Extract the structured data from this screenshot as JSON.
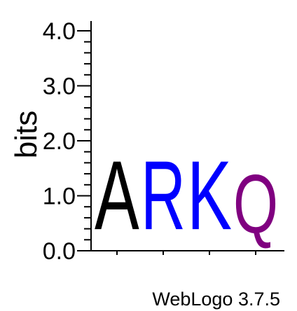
{
  "chart_data": {
    "type": "sequence-logo",
    "ylabel": "bits",
    "ylim": [
      0,
      4.0
    ],
    "yticks": [
      "0.0",
      "1.0",
      "2.0",
      "3.0",
      "4.0"
    ],
    "minor_ticks_per_unit": 5,
    "positions": [
      {
        "letter": "A",
        "bits": 2.0,
        "color": "#000000"
      },
      {
        "letter": "R",
        "bits": 2.0,
        "color": "#0000ff"
      },
      {
        "letter": "K",
        "bits": 2.0,
        "color": "#0000ff"
      },
      {
        "letter": "Q",
        "bits": 1.7,
        "color": "#800080"
      }
    ],
    "footer": "WebLogo 3.7.5"
  }
}
